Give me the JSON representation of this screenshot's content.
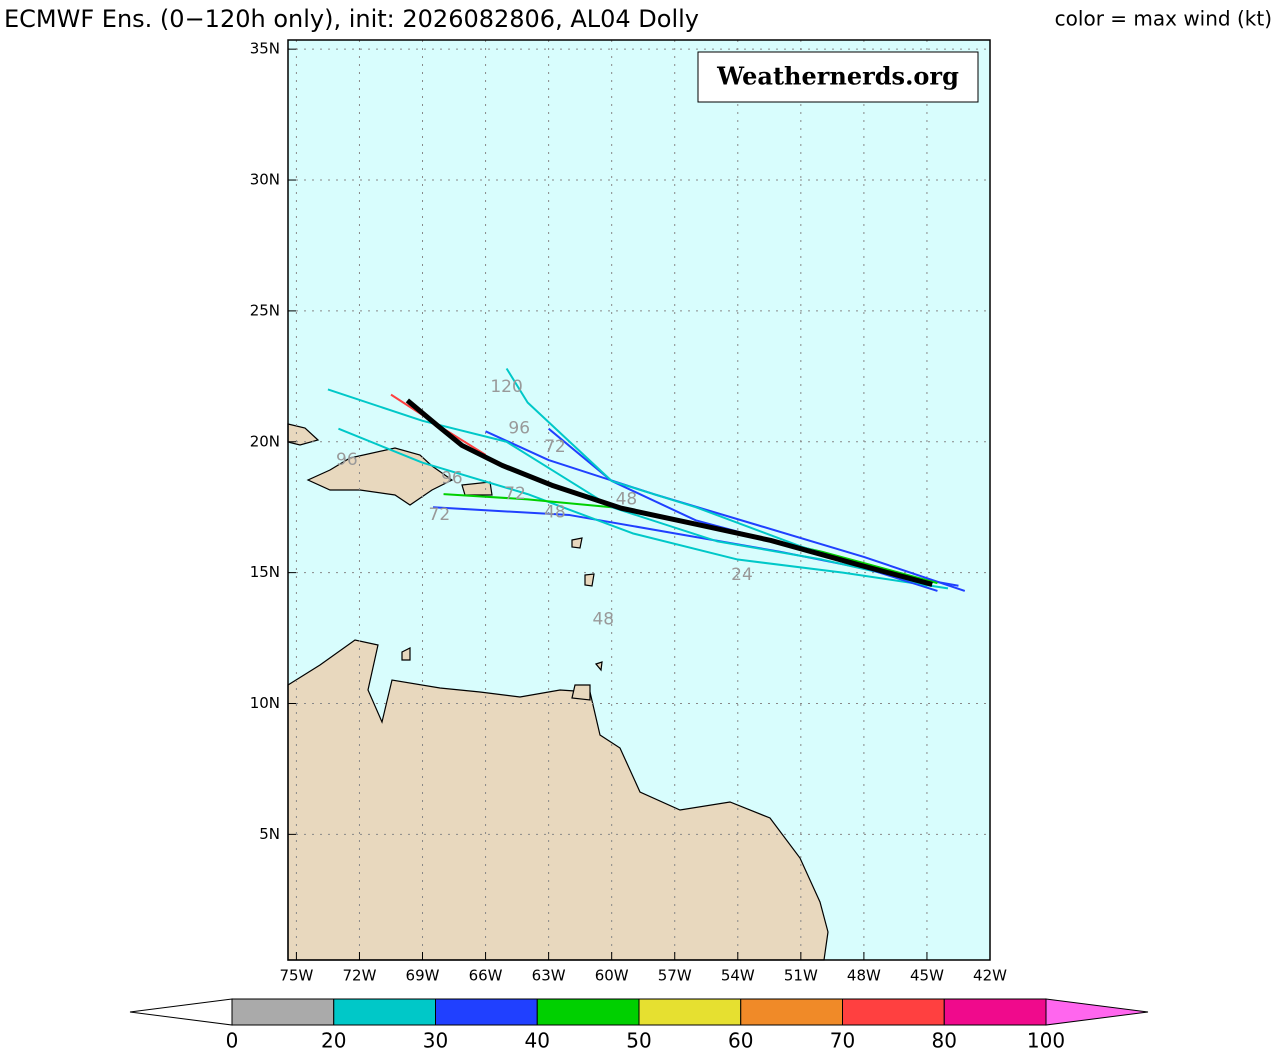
{
  "chart_data": {
    "type": "track-map",
    "title": "ECMWF Ens. (0−120h only), init: 2026082806, AL04 Dolly",
    "subtitle": "color = max wind (kt)",
    "watermark": "Weathernerds.org",
    "xlim": [
      -75.4,
      -42
    ],
    "ylim": [
      0.2,
      35.35
    ],
    "xticks": [
      {
        "value": -75,
        "label": "75W"
      },
      {
        "value": -72,
        "label": "72W"
      },
      {
        "value": -69,
        "label": "69W"
      },
      {
        "value": -66,
        "label": "66W"
      },
      {
        "value": -63,
        "label": "63W"
      },
      {
        "value": -60,
        "label": "60W"
      },
      {
        "value": -57,
        "label": "57W"
      },
      {
        "value": -54,
        "label": "54W"
      },
      {
        "value": -51,
        "label": "51W"
      },
      {
        "value": -48,
        "label": "48W"
      },
      {
        "value": -45,
        "label": "45W"
      },
      {
        "value": -42,
        "label": "42W"
      }
    ],
    "yticks": [
      {
        "value": 5,
        "label": "5N"
      },
      {
        "value": 10,
        "label": "10N"
      },
      {
        "value": 15,
        "label": "15N"
      },
      {
        "value": 20,
        "label": "20N"
      },
      {
        "value": 25,
        "label": "25N"
      },
      {
        "value": 30,
        "label": "30N"
      },
      {
        "value": 35,
        "label": "35N"
      }
    ],
    "grid": true,
    "series": [
      {
        "color": "#2040ff",
        "x": [
          -43.2,
          -48,
          -53,
          -58,
          -63,
          -66
        ],
        "values": [
          14.3,
          15.6,
          16.8,
          18.0,
          19.3,
          20.4
        ]
      },
      {
        "color": "#2040ff",
        "x": [
          -43.5,
          -47,
          -52,
          -57,
          -62,
          -68.5
        ],
        "values": [
          14.5,
          15.0,
          15.8,
          16.5,
          17.2,
          17.5
        ]
      },
      {
        "color": "#00c8c8",
        "x": [
          -44,
          -49,
          -54,
          -59,
          -64,
          -69,
          -73
        ],
        "values": [
          14.4,
          15.0,
          15.5,
          16.5,
          18.0,
          19.2,
          20.5
        ]
      },
      {
        "color": "#00d000",
        "x": [
          -44.5,
          -50,
          -55,
          -60,
          -64,
          -68
        ],
        "values": [
          14.6,
          15.8,
          16.7,
          17.5,
          17.8,
          18.0
        ]
      },
      {
        "color": "#00c8c8",
        "x": [
          -45,
          -50,
          -55,
          -60,
          -63,
          -65,
          -69,
          -73.5
        ],
        "values": [
          14.6,
          15.5,
          16.2,
          17.5,
          19.0,
          20.0,
          20.8,
          22
        ]
      },
      {
        "color": "#2040ff",
        "x": [
          -44.5,
          -50,
          -56,
          -60,
          -63
        ],
        "values": [
          14.3,
          15.7,
          17.0,
          18.5,
          20.5
        ]
      },
      {
        "color": "#00c8c8",
        "x": [
          -45,
          -51,
          -56,
          -60,
          -62,
          -64,
          -65
        ],
        "values": [
          14.5,
          16,
          17.5,
          18.5,
          20,
          21.5,
          22.8
        ]
      },
      {
        "color": "#ff4040",
        "x": [
          -66,
          -68,
          -70.5
        ],
        "values": [
          19.5,
          20.5,
          21.8
        ]
      }
    ],
    "mean_track": {
      "color": "#000000",
      "x": [
        -44.75,
        -48.16,
        -52.43,
        -55.74,
        -59.54,
        -62.85,
        -65.22,
        -67.12,
        -68.3,
        -69.72
      ],
      "values": [
        14.55,
        15.28,
        16.23,
        16.81,
        17.46,
        18.34,
        19.1,
        19.86,
        20.63,
        21.58
      ]
    },
    "annotations": [
      {
        "text": "24",
        "x": -53.8,
        "y": 14.9
      },
      {
        "text": "48",
        "x": -60.4,
        "y": 13.2
      },
      {
        "text": "48",
        "x": -62.7,
        "y": 17.3
      },
      {
        "text": "48",
        "x": -59.3,
        "y": 17.8
      },
      {
        "text": "72",
        "x": -68.2,
        "y": 17.2
      },
      {
        "text": "72",
        "x": -64.6,
        "y": 18.0
      },
      {
        "text": "72",
        "x": -62.7,
        "y": 19.8
      },
      {
        "text": "96",
        "x": -67.6,
        "y": 18.6
      },
      {
        "text": "96",
        "x": -64.4,
        "y": 20.5
      },
      {
        "text": "96",
        "x": -72.6,
        "y": 19.3
      },
      {
        "text": "120",
        "x": -65.0,
        "y": 22.1
      }
    ],
    "colorbar": {
      "bounds": [
        0,
        20,
        30,
        40,
        50,
        60,
        70,
        80,
        100
      ],
      "colors": [
        "#aaaaaa",
        "#00c8c8",
        "#2040ff",
        "#00d000",
        "#e6e030",
        "#f08a28",
        "#ff4040",
        "#f00a8c"
      ],
      "under_color": "#ffffff",
      "over_color": "#ff66ee"
    }
  }
}
